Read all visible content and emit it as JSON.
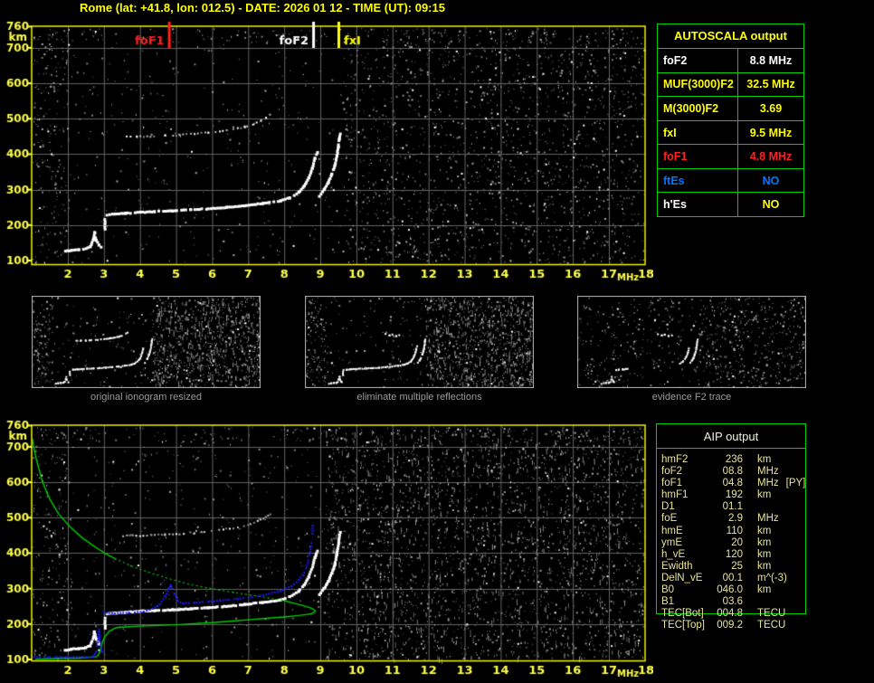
{
  "header": {
    "title": "Rome (lat: +41.8, lon: 012.5) - DATE: 2026 01 12 - TIME (UT): 09:15"
  },
  "palette": {
    "background": "#000000",
    "axis_yellow": "#ffff00",
    "grid_gray": "#656565",
    "table_green": "#00d000",
    "profile_green": "#00cc00",
    "synthesized_blue": "#1a1aff",
    "echo_white": "#ffffff",
    "caption_gray": "#9a9a9a",
    "aip_text": "#e8e49a",
    "red": "#ff2020",
    "blue_text": "#0077ff"
  },
  "autoscala": {
    "title": "AUTOSCALA output",
    "rows": [
      {
        "label": "foF2",
        "value": "8.8 MHz",
        "color": "#ffffff",
        "value_color": "#ffffff"
      },
      {
        "label": "MUF(3000)F2",
        "value": "32.5 MHz",
        "color": "#ffff00",
        "value_color": "#ffff00"
      },
      {
        "label": "M(3000)F2",
        "value": "3.69",
        "color": "#ffff00",
        "value_color": "#ffff00"
      },
      {
        "label": "fxI",
        "value": "9.5 MHz",
        "color": "#ffff00",
        "value_color": "#ffff00"
      },
      {
        "label": "foF1",
        "value": "4.8 MHz",
        "color": "#ff2020",
        "value_color": "#ff2020"
      },
      {
        "label": "ftEs",
        "value": "NO",
        "color": "#0077ff",
        "value_color": "#0077ff"
      },
      {
        "label": "h'Es",
        "value": "NO",
        "color": "#ffffff",
        "value_color": "#ffff00"
      }
    ]
  },
  "aip": {
    "title": "AIP output",
    "rows": [
      {
        "name": "hmF2",
        "value": "236",
        "unit": "km",
        "note": ""
      },
      {
        "name": "foF2",
        "value": "08.8",
        "unit": "MHz",
        "note": ""
      },
      {
        "name": "foF1",
        "value": "04.8",
        "unit": "MHz",
        "note": "[PY]"
      },
      {
        "name": "hmF1",
        "value": "192",
        "unit": "km",
        "note": ""
      },
      {
        "name": "D1",
        "value": "01.1",
        "unit": "",
        "note": ""
      },
      {
        "name": "foE",
        "value": "2.9",
        "unit": "MHz",
        "note": ""
      },
      {
        "name": "hmE",
        "value": "110",
        "unit": "km",
        "note": ""
      },
      {
        "name": "ymE",
        "value": "20",
        "unit": "km",
        "note": ""
      },
      {
        "name": "h_vE",
        "value": "120",
        "unit": "km",
        "note": ""
      },
      {
        "name": "Ewidth",
        "value": "25",
        "unit": "km",
        "note": ""
      },
      {
        "name": "DelN_vE",
        "value": "00.1",
        "unit": "m^(-3)",
        "note": ""
      },
      {
        "name": "B0",
        "value": "046.0",
        "unit": "km",
        "note": ""
      },
      {
        "name": "B1",
        "value": "03.6",
        "unit": "",
        "note": ""
      },
      {
        "name": "TEC[Bot]",
        "value": "004.8",
        "unit": "TECU",
        "note": ""
      },
      {
        "name": "TEC[Top]",
        "value": "009.2",
        "unit": "TECU",
        "note": ""
      }
    ]
  },
  "chart_data": [
    {
      "id": "top_ionogram",
      "type": "scatter",
      "title": "recorded ionogram with AUTOSCALA characteristic markers",
      "xlabel": "MHz",
      "ylabel": "km",
      "xlim": [
        1.0,
        18.0
      ],
      "ylim": [
        96,
        761
      ],
      "x_ticks": [
        2,
        3,
        4,
        5,
        6,
        7,
        8,
        9,
        10,
        11,
        12,
        13,
        14,
        15,
        16,
        17,
        18
      ],
      "y_ticks": [
        100,
        200,
        300,
        400,
        500,
        600,
        700,
        760
      ],
      "grid": true,
      "markers": [
        {
          "label": "foF1",
          "freq_mhz": 4.8,
          "color": "#ff2020",
          "side": "left"
        },
        {
          "label": "foF2",
          "freq_mhz": 8.8,
          "color": "#ffffff",
          "side": "left"
        },
        {
          "label": "fxI",
          "freq_mhz": 9.5,
          "color": "#ffff00",
          "side": "right"
        }
      ],
      "series": [
        {
          "name": "E-trace",
          "color": "#ffffff",
          "style": "dots",
          "points": [
            [
              1.93,
              126
            ],
            [
              2.1,
              129
            ],
            [
              2.3,
              131
            ],
            [
              2.5,
              133
            ],
            [
              2.62,
              139
            ],
            [
              2.7,
              158
            ],
            [
              2.74,
              178
            ],
            [
              2.79,
              157
            ],
            [
              2.86,
              144
            ],
            [
              2.92,
              137
            ]
          ]
        },
        {
          "name": "F-trace-onset",
          "color": "#ffffff",
          "style": "dots",
          "points": [
            [
              3.03,
              189
            ],
            [
              3.03,
              216
            ]
          ]
        },
        {
          "name": "F-trace",
          "color": "#ffffff",
          "style": "dots",
          "points": [
            [
              3.08,
              228
            ],
            [
              3.3,
              231
            ],
            [
              3.6,
              233
            ],
            [
              4.0,
              236
            ],
            [
              4.4,
              238
            ],
            [
              4.9,
              240
            ],
            [
              5.4,
              243
            ],
            [
              5.9,
              246
            ],
            [
              6.4,
              250
            ],
            [
              6.9,
              255
            ],
            [
              7.4,
              261
            ],
            [
              7.9,
              268
            ],
            [
              8.15,
              277
            ],
            [
              8.4,
              292
            ],
            [
              8.55,
              310
            ],
            [
              8.68,
              333
            ],
            [
              8.78,
              360
            ],
            [
              8.85,
              388
            ],
            [
              8.92,
              406
            ]
          ]
        },
        {
          "name": "F2-x-branch",
          "color": "#ffffff",
          "style": "dots",
          "points": [
            [
              8.97,
              282
            ],
            [
              9.1,
              300
            ],
            [
              9.22,
              320
            ],
            [
              9.32,
              344
            ],
            [
              9.4,
              368
            ],
            [
              9.46,
              395
            ],
            [
              9.5,
              420
            ],
            [
              9.53,
              444
            ],
            [
              9.55,
              458
            ]
          ]
        },
        {
          "name": "second-hop-echo",
          "color": "#cccccc",
          "style": "dots",
          "points": [
            [
              3.55,
              448
            ],
            [
              3.9,
              449
            ],
            [
              4.3,
              450
            ],
            [
              4.7,
              452
            ],
            [
              5.1,
              454
            ],
            [
              5.5,
              457
            ],
            [
              5.9,
              461
            ],
            [
              6.3,
              466
            ],
            [
              6.6,
              471
            ],
            [
              6.9,
              477
            ],
            [
              7.15,
              485
            ],
            [
              7.35,
              494
            ],
            [
              7.5,
              502
            ],
            [
              7.62,
              510
            ]
          ]
        }
      ]
    },
    {
      "id": "bottom_ionogram",
      "type": "scatter",
      "title": "ionogram with AIP electron density profile and synthesized trace",
      "xlabel": "MHz",
      "ylabel": "km",
      "xlim": [
        1.0,
        18.0
      ],
      "ylim": [
        96,
        761
      ],
      "x_ticks": [
        2,
        3,
        4,
        5,
        6,
        7,
        8,
        9,
        10,
        11,
        12,
        13,
        14,
        15,
        16,
        17,
        18
      ],
      "y_ticks": [
        100,
        200,
        300,
        400,
        500,
        600,
        700,
        760
      ],
      "grid": true,
      "markers": [],
      "echo_series_from": "top_ionogram",
      "series": [
        {
          "name": "profile-topside",
          "color": "#00cc00",
          "style": "line",
          "points": [
            [
              1.02,
              722
            ],
            [
              1.07,
              690
            ],
            [
              1.15,
              655
            ],
            [
              1.3,
              600
            ],
            [
              1.5,
              552
            ],
            [
              1.75,
              510
            ],
            [
              2.05,
              475
            ],
            [
              2.4,
              443
            ],
            [
              2.75,
              418
            ],
            [
              3.05,
              398
            ],
            [
              3.3,
              385
            ]
          ]
        },
        {
          "name": "profile-topside-dotted",
          "color": "#00cc00",
          "style": "dotted",
          "points": [
            [
              3.3,
              385
            ],
            [
              3.8,
              362
            ],
            [
              4.3,
              344
            ],
            [
              4.8,
              328
            ],
            [
              5.3,
              314
            ],
            [
              5.8,
              303
            ],
            [
              6.3,
              294
            ],
            [
              6.8,
              286
            ],
            [
              7.3,
              278
            ],
            [
              7.7,
              271
            ],
            [
              8.0,
              266
            ]
          ]
        },
        {
          "name": "profile-peak-and-bottomside",
          "color": "#00cc00",
          "style": "line",
          "points": [
            [
              8.0,
              266
            ],
            [
              8.3,
              258
            ],
            [
              8.55,
              251
            ],
            [
              8.72,
              246
            ],
            [
              8.82,
              241
            ],
            [
              8.86,
              237
            ],
            [
              8.82,
              232
            ],
            [
              8.7,
              228
            ],
            [
              8.4,
              224
            ],
            [
              8.0,
              220
            ],
            [
              7.5,
              216
            ],
            [
              7.0,
              212
            ],
            [
              6.5,
              208
            ],
            [
              6.0,
              204
            ],
            [
              5.5,
              201
            ],
            [
              5.0,
              198
            ],
            [
              4.5,
              196
            ],
            [
              4.0,
              194
            ],
            [
              3.6,
              192
            ],
            [
              3.35,
              190
            ],
            [
              3.15,
              180
            ],
            [
              3.0,
              160
            ],
            [
              2.92,
              135
            ],
            [
              2.88,
              120
            ],
            [
              2.84,
              112
            ],
            [
              2.8,
              108
            ],
            [
              2.6,
              106
            ],
            [
              2.3,
              104
            ],
            [
              1.9,
              103
            ],
            [
              1.5,
              102
            ],
            [
              1.1,
              101
            ]
          ]
        },
        {
          "name": "synthesized-E-flat",
          "color": "#1a1aff",
          "style": "dots",
          "points": [
            [
              1.0,
              107
            ],
            [
              1.5,
              107
            ],
            [
              2.0,
              107
            ],
            [
              2.4,
              107
            ],
            [
              2.7,
              107
            ]
          ]
        },
        {
          "name": "synthesized-E-cusp",
          "color": "#1a1aff",
          "style": "dots",
          "points": [
            [
              2.72,
              110
            ],
            [
              2.78,
              122
            ],
            [
              2.83,
              148
            ],
            [
              2.86,
              185
            ],
            [
              2.89,
              158
            ],
            [
              2.93,
              132
            ],
            [
              2.96,
              120
            ]
          ]
        },
        {
          "name": "synthesized-F-trace",
          "color": "#1a1aff",
          "style": "dots",
          "points": [
            [
              3.0,
              232
            ],
            [
              3.3,
              230
            ],
            [
              3.7,
              232
            ],
            [
              4.1,
              235
            ],
            [
              4.35,
              243
            ],
            [
              4.55,
              256
            ],
            [
              4.7,
              278
            ],
            [
              4.8,
              300
            ],
            [
              4.86,
              310
            ],
            [
              4.95,
              285
            ],
            [
              5.05,
              265
            ],
            [
              5.2,
              258
            ],
            [
              5.5,
              260
            ],
            [
              5.9,
              263
            ],
            [
              6.3,
              267
            ],
            [
              6.7,
              271
            ],
            [
              7.1,
              276
            ],
            [
              7.5,
              283
            ],
            [
              7.9,
              293
            ],
            [
              8.2,
              307
            ],
            [
              8.4,
              324
            ],
            [
              8.55,
              345
            ],
            [
              8.65,
              372
            ],
            [
              8.72,
              403
            ],
            [
              8.76,
              428
            ]
          ]
        },
        {
          "name": "synthesized-asymptote-dots",
          "color": "#1a1aff",
          "style": "dots",
          "points": [
            [
              8.78,
              455
            ],
            [
              8.79,
              478
            ]
          ]
        }
      ]
    },
    {
      "id": "thumb_original",
      "type": "scatter",
      "caption": "original ionogram resized",
      "series_from": "top_ionogram",
      "include": [
        {
          "name": "E-trace"
        },
        {
          "name": "F-trace-onset"
        },
        {
          "name": "F-trace"
        },
        {
          "name": "F2-x-branch"
        },
        {
          "name": "second-hop-echo"
        }
      ],
      "extra_series": []
    },
    {
      "id": "thumb_filtered",
      "type": "scatter",
      "caption": "eliminate multiple reflections",
      "series_from": "top_ionogram",
      "include": [
        {
          "name": "E-trace"
        },
        {
          "name": "F-trace-onset"
        },
        {
          "name": "F-trace"
        },
        {
          "name": "F2-x-branch"
        }
      ],
      "extra_series": [
        {
          "name": "second-hop-remnant",
          "color": "#ffffff",
          "style": "dots",
          "points": [
            [
              6.4,
              498
            ],
            [
              6.7,
              488
            ],
            [
              6.95,
              493
            ],
            [
              7.25,
              483
            ],
            [
              7.5,
              489
            ]
          ]
        }
      ]
    },
    {
      "id": "thumb_f2_evidence",
      "type": "scatter",
      "caption": "evidence F2 trace",
      "series_from": "top_ionogram",
      "include": [
        {
          "name": "E-trace"
        },
        {
          "name": "F-trace",
          "f_max": 4.3
        },
        {
          "name": "F-trace",
          "f_min": 8.0
        },
        {
          "name": "F2-x-branch"
        }
      ],
      "extra_series": [
        {
          "name": "second-hop-remnant",
          "color": "#ffffff",
          "style": "dots",
          "points": [
            [
              6.4,
              498
            ],
            [
              6.7,
              488
            ],
            [
              6.95,
              493
            ],
            [
              7.25,
              483
            ],
            [
              7.5,
              489
            ]
          ]
        }
      ]
    }
  ]
}
